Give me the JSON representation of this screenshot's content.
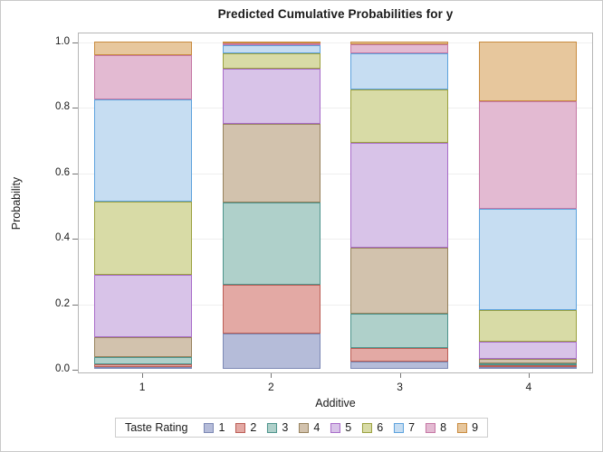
{
  "figure": {
    "background": "#ffffff",
    "border_color": "#c9c9c9",
    "frame_color": "#b5b5b5",
    "gridline_color": "#efefef",
    "tick_color": "#767676"
  },
  "chart_data": {
    "type": "bar",
    "subtype": "stacked-vertical",
    "title": "Predicted Cumulative Probabilities for y",
    "xlabel": "Additive",
    "ylabel": "Probability",
    "categories": [
      "1",
      "2",
      "3",
      "4"
    ],
    "y_ticks": [
      "0.0",
      "0.2",
      "0.4",
      "0.6",
      "0.8",
      "1.0"
    ],
    "ylim": [
      0,
      1
    ],
    "grid": "horizontal",
    "legend": {
      "position": "bottom",
      "title": "Taste Rating"
    },
    "series": [
      {
        "name": "1",
        "fill": "#b5bcd9",
        "stroke": "#7c88b4",
        "values": [
          0.0042,
          0.1076,
          0.0228,
          0.0008
        ],
        "cumulative": [
          0.0042,
          0.1076,
          0.0228,
          0.0008
        ]
      },
      {
        "name": "2",
        "fill": "#e3a9a4",
        "stroke": "#bb5d55",
        "values": [
          0.0078,
          0.1496,
          0.0401,
          0.0016
        ],
        "cumulative": [
          0.012,
          0.2572,
          0.0629,
          0.0024
        ]
      },
      {
        "name": "3",
        "fill": "#afd0ca",
        "stroke": "#4e948c",
        "values": [
          0.0231,
          0.2526,
          0.1047,
          0.0048
        ],
        "cumulative": [
          0.0351,
          0.5098,
          0.1676,
          0.0072
        ]
      },
      {
        "name": "4",
        "fill": "#d2c2ad",
        "stroke": "#97825d",
        "values": [
          0.0607,
          0.2419,
          0.202,
          0.0135
        ],
        "cumulative": [
          0.0958,
          0.7517,
          0.3696,
          0.0207
        ]
      },
      {
        "name": "5",
        "fill": "#d8c3e8",
        "stroke": "#a86cc9",
        "values": [
          0.1916,
          0.1684,
          0.3208,
          0.0537
        ],
        "cumulative": [
          0.2874,
          0.9201,
          0.6904,
          0.0744
        ]
      },
      {
        "name": "6",
        "fill": "#d8dba6",
        "stroke": "#9ba13f",
        "values": [
          0.2237,
          0.0474,
          0.1621,
          0.0981
        ],
        "cumulative": [
          0.5111,
          0.9675,
          0.8525,
          0.1725
        ]
      },
      {
        "name": "7",
        "fill": "#c6ddf2",
        "stroke": "#5da2dd",
        "values": [
          0.3132,
          0.0251,
          0.1104,
          0.3108
        ],
        "cumulative": [
          0.8243,
          0.9926,
          0.9629,
          0.4833
        ]
      },
      {
        "name": "8",
        "fill": "#e3bad2",
        "stroke": "#c577a4",
        "values": [
          0.1329,
          0.0058,
          0.0291,
          0.3332
        ],
        "cumulative": [
          0.9572,
          0.9984,
          0.992,
          0.8165
        ]
      },
      {
        "name": "9",
        "fill": "#e7c79d",
        "stroke": "#c98b3f",
        "values": [
          0.0428,
          0.0016,
          0.008,
          0.1835
        ],
        "cumulative": [
          1.0,
          1.0,
          1.0,
          1.0
        ]
      }
    ]
  }
}
